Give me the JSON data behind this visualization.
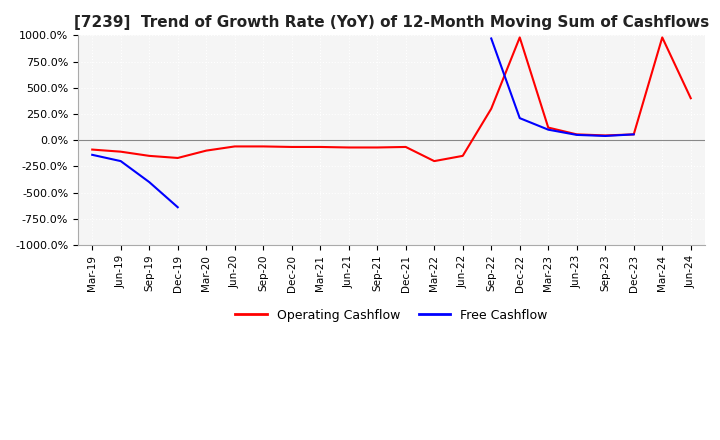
{
  "title": "[7239]  Trend of Growth Rate (YoY) of 12-Month Moving Sum of Cashflows",
  "title_fontsize": 11,
  "background_color": "#ffffff",
  "plot_background_color": "#f5f5f5",
  "grid_color": "#ffffff",
  "grid_linestyle": "dotted",
  "ylim": [
    -1000,
    1000
  ],
  "ytick_values": [
    1000,
    750,
    500,
    250,
    0,
    -250,
    -500,
    -750,
    -1000
  ],
  "legend_labels": [
    "Operating Cashflow",
    "Free Cashflow"
  ],
  "legend_colors": [
    "#ff0000",
    "#0000ff"
  ],
  "x_labels": [
    "Mar-19",
    "Jun-19",
    "Sep-19",
    "Dec-19",
    "Mar-20",
    "Jun-20",
    "Sep-20",
    "Dec-20",
    "Mar-21",
    "Jun-21",
    "Sep-21",
    "Dec-21",
    "Mar-22",
    "Jun-22",
    "Sep-22",
    "Dec-22",
    "Mar-23",
    "Jun-23",
    "Sep-23",
    "Dec-23",
    "Mar-24",
    "Jun-24"
  ],
  "operating_cashflow": [
    -90,
    -110,
    -150,
    -170,
    -100,
    -60,
    -60,
    -65,
    -65,
    -70,
    -70,
    -65,
    -200,
    -150,
    300,
    980,
    120,
    55,
    45,
    55,
    980,
    400
  ],
  "free_cashflow": [
    -140,
    -200,
    -400,
    -640,
    null,
    null,
    null,
    null,
    null,
    null,
    null,
    null,
    null,
    null,
    970,
    210,
    100,
    50,
    40,
    55,
    null,
    null
  ]
}
